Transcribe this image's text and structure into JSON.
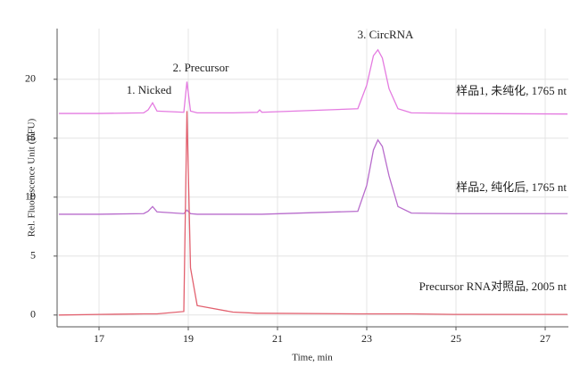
{
  "chart_data": {
    "type": "line",
    "x_label": "Time,  min",
    "y_label": "Rel. Fluorescence  Unit  (RFU)",
    "annotations": [
      "1. Nicked",
      "2. Precursor",
      "3. CircRNA"
    ],
    "x": [
      16.1,
      17,
      18,
      18.1,
      18.2,
      18.3,
      18.9,
      18.97,
      19.05,
      19.2,
      20,
      20.55,
      20.6,
      20.65,
      22.8,
      23.0,
      23.15,
      23.25,
      23.35,
      23.5,
      23.7,
      24,
      25,
      27.5
    ],
    "series": [
      {
        "name": "样品1, 未纯化, 1765 nt",
        "color": "#e47ae0",
        "values": [
          17.1,
          17.1,
          17.15,
          17.4,
          18.0,
          17.3,
          17.2,
          19.8,
          17.3,
          17.15,
          17.15,
          17.2,
          17.4,
          17.2,
          17.5,
          19.5,
          22.0,
          22.5,
          21.8,
          19.2,
          17.5,
          17.15,
          17.1,
          17.05
        ]
      },
      {
        "name": "样品2, 纯化后, 1765 nt",
        "color": "#b86ccc",
        "values": [
          8.55,
          8.55,
          8.6,
          8.8,
          9.2,
          8.75,
          8.6,
          8.9,
          8.6,
          8.55,
          8.55,
          8.55,
          8.55,
          8.55,
          8.8,
          11.0,
          14.0,
          14.85,
          14.3,
          11.8,
          9.2,
          8.65,
          8.6,
          8.6
        ]
      },
      {
        "name": "Precursor RNA对照品, 2005 nt",
        "color": "#e2606e",
        "values": [
          0.0,
          0.05,
          0.1,
          0.1,
          0.1,
          0.1,
          0.3,
          17.3,
          4.0,
          0.8,
          0.25,
          0.15,
          0.15,
          0.15,
          0.1,
          0.1,
          0.1,
          0.1,
          0.1,
          0.1,
          0.1,
          0.1,
          0.05,
          0.05
        ]
      }
    ],
    "xlim": [
      16.06,
      27.52
    ],
    "ylim": [
      -1,
      24.3
    ],
    "xticks": [
      17,
      19,
      21,
      23,
      25,
      27
    ],
    "yticks": [
      0,
      5,
      10,
      15,
      20
    ],
    "grid": true
  }
}
